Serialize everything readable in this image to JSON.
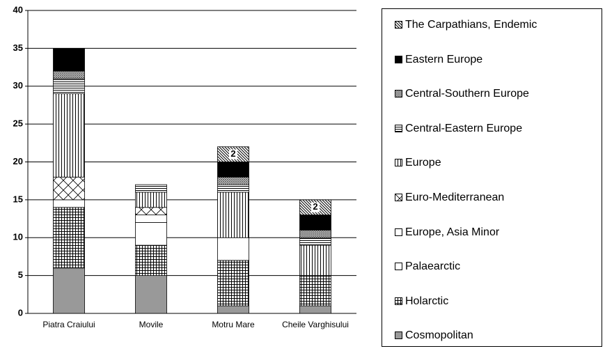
{
  "chart_data": {
    "type": "stacked_bar",
    "categories": [
      "Piatra Craiului",
      "Movile",
      "Motru Mare",
      "Cheile Varghisului"
    ],
    "ylim": [
      0,
      40
    ],
    "yticks": [
      0,
      5,
      10,
      15,
      20,
      25,
      30,
      35,
      40
    ],
    "grid": true,
    "legend": "right",
    "series": [
      {
        "name": "Cosmopolitan",
        "color": "#999999",
        "pattern": "solid",
        "values": [
          6,
          5,
          1,
          1
        ]
      },
      {
        "name": "Holarctic",
        "color": "#000000",
        "pattern": "grid",
        "values": [
          8,
          4,
          6,
          4
        ]
      },
      {
        "name": "Palaearctic",
        "color": "#ffffff",
        "pattern": "solid",
        "values": [
          1,
          3,
          3,
          0
        ]
      },
      {
        "name": "Europe, Asia Minor",
        "color": "#ffffff",
        "pattern": "solid",
        "values": [
          0,
          1,
          0,
          0
        ]
      },
      {
        "name": "Euro-Mediterranean",
        "color": "#000000",
        "pattern": "diamond",
        "values": [
          3,
          1,
          0,
          0
        ]
      },
      {
        "name": "Europe",
        "color": "#000000",
        "pattern": "vertical",
        "values": [
          11,
          2,
          6,
          4
        ]
      },
      {
        "name": "Central-Eastern Europe",
        "color": "#000000",
        "pattern": "horizontal",
        "values": [
          2,
          1,
          1,
          1
        ]
      },
      {
        "name": "Central-Southern Europe",
        "color": "#000000",
        "pattern": "crosshatch",
        "values": [
          1,
          0,
          1,
          1
        ]
      },
      {
        "name": "Eastern Europe",
        "color": "#000000",
        "pattern": "solid",
        "values": [
          3,
          0,
          2,
          2
        ]
      },
      {
        "name": "The Carpathians, Endemic",
        "color": "#000000",
        "pattern": "diagonal",
        "data_labels": true,
        "values": [
          0,
          0,
          2,
          2
        ]
      }
    ]
  }
}
